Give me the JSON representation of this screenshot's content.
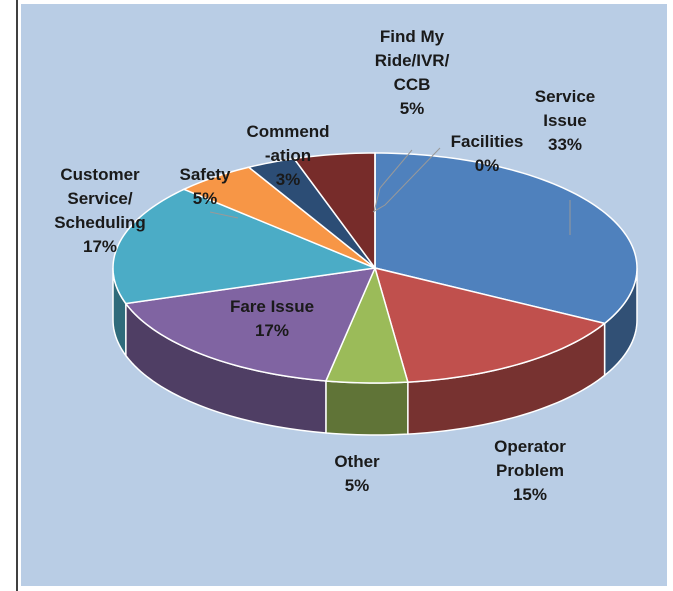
{
  "chart_data": {
    "type": "pie3d",
    "categories": [
      "Service\nIssue",
      "Operator\nProblem",
      "Other",
      "Fare Issue",
      "Customer\nService/\nScheduling",
      "Safety",
      "Commend\n-ation",
      "Find My\nRide/IVR/\nCCB",
      "Facilities"
    ],
    "values": [
      33,
      15,
      5,
      17,
      17,
      5,
      3,
      5,
      0
    ],
    "value_labels": [
      "33%",
      "15%",
      "5%",
      "17%",
      "17%",
      "5%",
      "3%",
      "5%",
      "0%"
    ],
    "colors": [
      "#4f81bd",
      "#c0504d",
      "#9bbb59",
      "#8064a2",
      "#4bacc6",
      "#f79646",
      "#2c4d75",
      "#772c2a",
      "#a5c07a"
    ]
  }
}
